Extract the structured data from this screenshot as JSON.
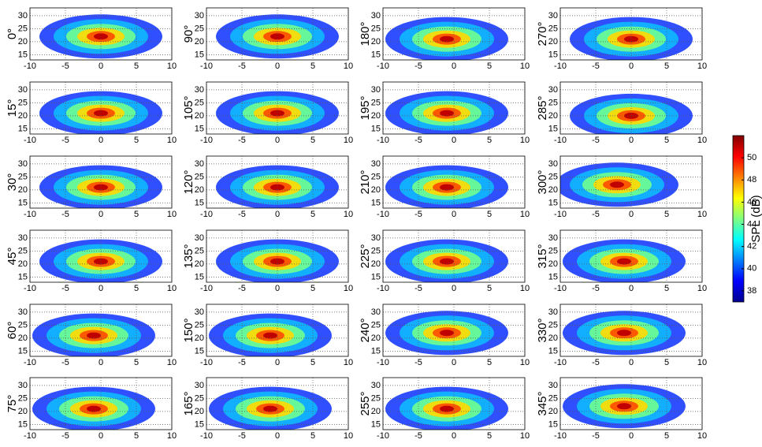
{
  "chart_data": [
    {
      "type": "heatmap",
      "ylabel": "0°",
      "hotspot": {
        "x": 0,
        "y": 22
      },
      "xlim": [
        -10,
        10
      ],
      "ylim": [
        13,
        33
      ],
      "xticks": [
        -10,
        -5,
        0,
        5,
        10
      ],
      "yticks": [
        15,
        20,
        25,
        30
      ],
      "grid": true
    },
    {
      "type": "heatmap",
      "ylabel": "15°",
      "hotspot": {
        "x": 0,
        "y": 21
      },
      "xlim": [
        -10,
        10
      ],
      "ylim": [
        13,
        33
      ],
      "xticks": [
        -10,
        -5,
        0,
        5,
        10
      ],
      "yticks": [
        15,
        20,
        25,
        30
      ],
      "grid": true
    },
    {
      "type": "heatmap",
      "ylabel": "30°",
      "hotspot": {
        "x": 0,
        "y": 21
      },
      "xlim": [
        -10,
        10
      ],
      "ylim": [
        13,
        33
      ],
      "xticks": [
        -10,
        -5,
        0,
        5,
        10
      ],
      "yticks": [
        15,
        20,
        25,
        30
      ],
      "grid": true
    },
    {
      "type": "heatmap",
      "ylabel": "45°",
      "hotspot": {
        "x": 0,
        "y": 21
      },
      "xlim": [
        -10,
        10
      ],
      "ylim": [
        13,
        33
      ],
      "xticks": [
        -10,
        -5,
        0,
        5,
        10
      ],
      "yticks": [
        15,
        20,
        25,
        30
      ],
      "grid": true
    },
    {
      "type": "heatmap",
      "ylabel": "60°",
      "hotspot": {
        "x": -1,
        "y": 21
      },
      "xlim": [
        -10,
        10
      ],
      "ylim": [
        13,
        33
      ],
      "xticks": [
        -10,
        -5,
        0,
        5,
        10
      ],
      "yticks": [
        15,
        20,
        25,
        30
      ],
      "grid": true
    },
    {
      "type": "heatmap",
      "ylabel": "75°",
      "hotspot": {
        "x": -1,
        "y": 21
      },
      "xlim": [
        -10,
        10
      ],
      "ylim": [
        13,
        33
      ],
      "xticks": [
        -10,
        -5,
        0,
        5,
        10
      ],
      "yticks": [
        15,
        20,
        25,
        30
      ],
      "grid": true
    },
    {
      "type": "heatmap",
      "ylabel": "90°",
      "hotspot": {
        "x": 0,
        "y": 22
      },
      "xlim": [
        -10,
        10
      ],
      "ylim": [
        13,
        33
      ],
      "xticks": [
        -10,
        -5,
        0,
        5,
        10
      ],
      "yticks": [
        15,
        20,
        25,
        30
      ],
      "grid": true
    },
    {
      "type": "heatmap",
      "ylabel": "105°",
      "hotspot": {
        "x": 0,
        "y": 21
      },
      "xlim": [
        -10,
        10
      ],
      "ylim": [
        13,
        33
      ],
      "xticks": [
        -10,
        -5,
        0,
        5,
        10
      ],
      "yticks": [
        15,
        20,
        25,
        30
      ],
      "grid": true
    },
    {
      "type": "heatmap",
      "ylabel": "120°",
      "hotspot": {
        "x": 0,
        "y": 21
      },
      "xlim": [
        -10,
        10
      ],
      "ylim": [
        13,
        33
      ],
      "xticks": [
        -10,
        -5,
        0,
        5,
        10
      ],
      "yticks": [
        15,
        20,
        25,
        30
      ],
      "grid": true
    },
    {
      "type": "heatmap",
      "ylabel": "135°",
      "hotspot": {
        "x": 0,
        "y": 21
      },
      "xlim": [
        -10,
        10
      ],
      "ylim": [
        13,
        33
      ],
      "xticks": [
        -10,
        -5,
        0,
        5,
        10
      ],
      "yticks": [
        15,
        20,
        25,
        30
      ],
      "grid": true
    },
    {
      "type": "heatmap",
      "ylabel": "150°",
      "hotspot": {
        "x": -1,
        "y": 21
      },
      "xlim": [
        -10,
        10
      ],
      "ylim": [
        13,
        33
      ],
      "xticks": [
        -10,
        -5,
        0,
        5,
        10
      ],
      "yticks": [
        15,
        20,
        25,
        30
      ],
      "grid": true
    },
    {
      "type": "heatmap",
      "ylabel": "165°",
      "hotspot": {
        "x": -1,
        "y": 21
      },
      "xlim": [
        -10,
        10
      ],
      "ylim": [
        13,
        33
      ],
      "xticks": [
        -10,
        -5,
        0,
        5,
        10
      ],
      "yticks": [
        15,
        20,
        25,
        30
      ],
      "grid": true
    },
    {
      "type": "heatmap",
      "ylabel": "180°",
      "hotspot": {
        "x": -1,
        "y": 21
      },
      "xlim": [
        -10,
        10
      ],
      "ylim": [
        13,
        33
      ],
      "xticks": [
        -10,
        -5,
        0,
        5,
        10
      ],
      "yticks": [
        15,
        20,
        25,
        30
      ],
      "grid": true
    },
    {
      "type": "heatmap",
      "ylabel": "195°",
      "hotspot": {
        "x": -1,
        "y": 21
      },
      "xlim": [
        -10,
        10
      ],
      "ylim": [
        13,
        33
      ],
      "xticks": [
        -10,
        -5,
        0,
        5,
        10
      ],
      "yticks": [
        15,
        20,
        25,
        30
      ],
      "grid": true
    },
    {
      "type": "heatmap",
      "ylabel": "210°",
      "hotspot": {
        "x": -1,
        "y": 21
      },
      "xlim": [
        -10,
        10
      ],
      "ylim": [
        13,
        33
      ],
      "xticks": [
        -10,
        -5,
        0,
        5,
        10
      ],
      "yticks": [
        15,
        20,
        25,
        30
      ],
      "grid": true
    },
    {
      "type": "heatmap",
      "ylabel": "225°",
      "hotspot": {
        "x": -1,
        "y": 21
      },
      "xlim": [
        -10,
        10
      ],
      "ylim": [
        13,
        33
      ],
      "xticks": [
        -10,
        -5,
        0,
        5,
        10
      ],
      "yticks": [
        15,
        20,
        25,
        30
      ],
      "grid": true
    },
    {
      "type": "heatmap",
      "ylabel": "240°",
      "hotspot": {
        "x": -1,
        "y": 22
      },
      "xlim": [
        -10,
        10
      ],
      "ylim": [
        13,
        33
      ],
      "xticks": [
        -10,
        -5,
        0,
        5,
        10
      ],
      "yticks": [
        15,
        20,
        25,
        30
      ],
      "grid": true
    },
    {
      "type": "heatmap",
      "ylabel": "255°",
      "hotspot": {
        "x": -1,
        "y": 21
      },
      "xlim": [
        -10,
        10
      ],
      "ylim": [
        13,
        33
      ],
      "xticks": [
        -10,
        -5,
        0,
        5,
        10
      ],
      "yticks": [
        15,
        20,
        25,
        30
      ],
      "grid": true
    },
    {
      "type": "heatmap",
      "ylabel": "270°",
      "hotspot": {
        "x": 0,
        "y": 21
      },
      "xlim": [
        -10,
        10
      ],
      "ylim": [
        13,
        33
      ],
      "xticks": [
        -10,
        -5,
        0,
        5,
        10
      ],
      "yticks": [
        15,
        20,
        25,
        30
      ],
      "grid": true
    },
    {
      "type": "heatmap",
      "ylabel": "285°",
      "hotspot": {
        "x": 0,
        "y": 20
      },
      "xlim": [
        -10,
        10
      ],
      "ylim": [
        13,
        33
      ],
      "xticks": [
        -10,
        -5,
        0,
        5,
        10
      ],
      "yticks": [
        15,
        20,
        25,
        30
      ],
      "grid": true
    },
    {
      "type": "heatmap",
      "ylabel": "300°",
      "hotspot": {
        "x": -2,
        "y": 22
      },
      "xlim": [
        -10,
        10
      ],
      "ylim": [
        13,
        33
      ],
      "xticks": [
        -10,
        -5,
        0,
        5,
        10
      ],
      "yticks": [
        15,
        20,
        25,
        30
      ],
      "grid": true
    },
    {
      "type": "heatmap",
      "ylabel": "315°",
      "hotspot": {
        "x": -1,
        "y": 21
      },
      "xlim": [
        -10,
        10
      ],
      "ylim": [
        13,
        33
      ],
      "xticks": [
        -10,
        -5,
        0,
        5,
        10
      ],
      "yticks": [
        15,
        20,
        25,
        30
      ],
      "grid": true
    },
    {
      "type": "heatmap",
      "ylabel": "330°",
      "hotspot": {
        "x": -1,
        "y": 22
      },
      "xlim": [
        -10,
        10
      ],
      "ylim": [
        13,
        33
      ],
      "xticks": [
        -10,
        -5,
        0,
        5,
        10
      ],
      "yticks": [
        15,
        20,
        25,
        30
      ],
      "grid": true
    },
    {
      "type": "heatmap",
      "ylabel": "345°",
      "hotspot": {
        "x": -1,
        "y": 22
      },
      "xlim": [
        -10,
        10
      ],
      "ylim": [
        13,
        33
      ],
      "xticks": [
        -10,
        -5,
        0,
        5,
        10
      ],
      "yticks": [
        15,
        20,
        25,
        30
      ],
      "grid": true
    },
    {
      "type": "colorbar",
      "label": "SPL (dB)",
      "colormap": "jet",
      "ylim": [
        37,
        52
      ],
      "yticks": [
        38,
        40,
        42,
        44,
        46,
        48,
        50
      ]
    }
  ]
}
